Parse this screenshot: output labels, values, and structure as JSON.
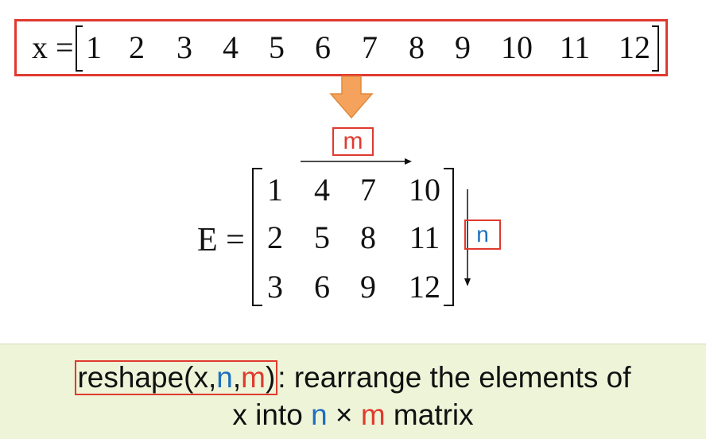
{
  "vector": {
    "label": "x =",
    "values": [
      "1",
      "2",
      "3",
      "4",
      "5",
      "6",
      "7",
      "8",
      "9",
      "10",
      "11",
      "12"
    ]
  },
  "matrix": {
    "label": "E =",
    "rows": [
      [
        "1",
        "4",
        "7",
        "10"
      ],
      [
        "2",
        "5",
        "8",
        "11"
      ],
      [
        "3",
        "6",
        "9",
        "12"
      ]
    ]
  },
  "labels": {
    "m": "m",
    "n": "n"
  },
  "caption": {
    "fn_name": "reshape(x,",
    "fn_n": "n",
    "fn_comma": ",",
    "fn_m": "m",
    "fn_close": ")",
    "line1_rest": ": rearrange the elements of",
    "line2_pre": "x into ",
    "line2_n": "n",
    "line2_times": " × ",
    "line2_m": "m",
    "line2_post": " matrix"
  },
  "colors": {
    "accent_red": "#e03a2f",
    "accent_blue": "#1d6fc0",
    "arrow_orange": "#f5a25c",
    "banner_bg": "#eef4d8"
  }
}
